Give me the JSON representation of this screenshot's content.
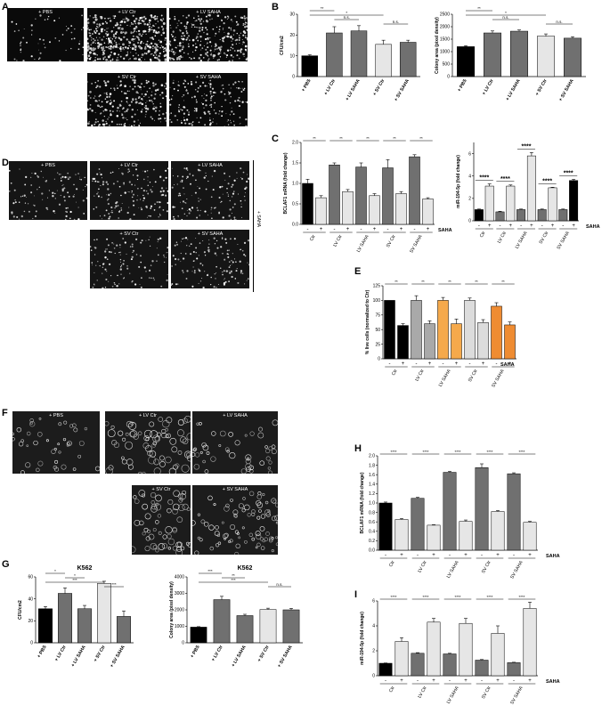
{
  "panels": {
    "A": {
      "letter": "A",
      "images": [
        "+ PBS",
        "+ LV Ctr",
        "+ LV SAHA",
        "+ SV Ctr",
        "+ SV SAHA"
      ]
    },
    "B": {
      "letter": "B"
    },
    "C": {
      "letter": "C"
    },
    "D": {
      "letter": "D",
      "images": [
        "+ PBS",
        "+ LV Ctr",
        "+ LV SAHA",
        "+ SV Ctr",
        "+ SV SAHA"
      ],
      "side_label": "+ SAHA"
    },
    "E": {
      "letter": "E"
    },
    "F": {
      "letter": "F",
      "images": [
        "+ PBS",
        "+ LV Ctr",
        "+ LV SAHA",
        "+ SV Ctr",
        "+ SV SAHA"
      ]
    },
    "G": {
      "letter": "G"
    },
    "H": {
      "letter": "H"
    },
    "I": {
      "letter": "I"
    }
  },
  "chart_data": [
    {
      "id": "B1",
      "type": "bar",
      "ylabel": "CFU/cm2",
      "categories": [
        "+ PBS",
        "+ LV Ctr",
        "+ LV SAHA",
        "+ SV Ctr",
        "+ SV SAHA"
      ],
      "values": [
        10,
        21,
        22,
        15.5,
        16.5
      ],
      "errors": [
        0.5,
        3,
        2.5,
        2,
        1
      ],
      "ylim": [
        0,
        30
      ],
      "yticks": [
        "0",
        "10",
        "20",
        "30"
      ],
      "colors": [
        "#000000",
        "#707070",
        "#707070",
        "#e6e6e6",
        "#707070"
      ],
      "sig": [
        {
          "a": 0,
          "b": 1,
          "t": "**"
        },
        {
          "a": 0,
          "b": 3,
          "t": "*"
        },
        {
          "a": 1,
          "b": 2,
          "t": "n.s."
        },
        {
          "a": 3,
          "b": 4,
          "t": "n.s."
        }
      ]
    },
    {
      "id": "B2",
      "type": "bar",
      "ylabel": "Colony area (pixel density)",
      "categories": [
        "+ PBS",
        "+ LV Ctr",
        "+ LV SAHA",
        "+ SV Ctr",
        "+ SV SAHA"
      ],
      "values": [
        1200,
        1750,
        1820,
        1620,
        1540
      ],
      "errors": [
        40,
        80,
        50,
        90,
        60
      ],
      "ylim": [
        0,
        2500
      ],
      "yticks": [
        "0",
        "500",
        "1000",
        "1500",
        "2000",
        "2500"
      ],
      "colors": [
        "#000000",
        "#707070",
        "#707070",
        "#e6e6e6",
        "#707070"
      ],
      "sig": [
        {
          "a": 0,
          "b": 1,
          "t": "**"
        },
        {
          "a": 0,
          "b": 3,
          "t": "*"
        },
        {
          "a": 1,
          "b": 2,
          "t": "n.s."
        },
        {
          "a": 3,
          "b": 4,
          "t": "n.s."
        }
      ]
    },
    {
      "id": "C1",
      "type": "bar",
      "ylabel": "BCLAF1 mRNA (fold change)",
      "groups": [
        "Ctr",
        "LV Ctr",
        "LV SAHA",
        "SV Ctr",
        "SV SAHA"
      ],
      "pm": [
        "-",
        "+"
      ],
      "factor": "SAHA",
      "values": [
        1.0,
        0.65,
        1.45,
        0.8,
        1.4,
        0.7,
        1.38,
        0.75,
        1.65,
        0.62
      ],
      "errors": [
        0.1,
        0.05,
        0.05,
        0.05,
        0.1,
        0.05,
        0.2,
        0.05,
        0.05,
        0.03
      ],
      "ylim": [
        0,
        2.0
      ],
      "yticks": [
        "0.0",
        "0.5",
        "1.0",
        "1.5",
        "2.0"
      ],
      "colors": [
        "#000000",
        "#e6e6e6",
        "#707070",
        "#e6e6e6",
        "#707070",
        "#e6e6e6",
        "#707070",
        "#e6e6e6",
        "#707070",
        "#e6e6e6"
      ],
      "sig": "**"
    },
    {
      "id": "C2",
      "type": "bar",
      "ylabel": "miR-194-5p (fold change)",
      "groups": [
        "Ctr",
        "LV Ctr",
        "LV SAHA",
        "SV Ctr",
        "SV SAHA"
      ],
      "pm": [
        "-",
        "+"
      ],
      "factor": "SAHA",
      "values": [
        1.0,
        3.1,
        0.8,
        3.1,
        1.0,
        5.8,
        1.0,
        2.95,
        1.0,
        3.6
      ],
      "errors": [
        0.05,
        0.2,
        0.05,
        0.1,
        0.05,
        0.3,
        0.05,
        0.05,
        0.05,
        0.1
      ],
      "ylim": [
        0,
        7
      ],
      "yticks": [
        "0",
        "2",
        "4",
        "6"
      ],
      "colors": [
        "#000000",
        "#e6e6e6",
        "#707070",
        "#e6e6e6",
        "#707070",
        "#e6e6e6",
        "#707070",
        "#e6e6e6",
        "#707070",
        "#000000"
      ],
      "sig": "****"
    },
    {
      "id": "E",
      "type": "bar",
      "ylabel": "% live cells (normalized to Ctr)",
      "groups": [
        "Ctr",
        "LV Ctr",
        "LV SAHA",
        "SV Ctr",
        "SV SAHA"
      ],
      "pm": [
        "-",
        "+"
      ],
      "factor": "SAHA",
      "values": [
        100,
        57,
        100,
        60,
        100,
        60,
        100,
        62,
        90,
        58
      ],
      "errors": [
        0,
        3,
        8,
        5,
        5,
        8,
        4,
        5,
        6,
        5
      ],
      "ylim": [
        0,
        125
      ],
      "yticks": [
        "0",
        "25",
        "50",
        "75",
        "100",
        "125"
      ],
      "colors": [
        "#000000",
        "#000000",
        "#a9a9a9",
        "#a9a9a9",
        "#f5a94b",
        "#f5a94b",
        "#dcdcdc",
        "#dcdcdc",
        "#ef8c32",
        "#ef8c32"
      ],
      "sig": "**"
    },
    {
      "id": "G1",
      "type": "bar",
      "title": "K562",
      "ylabel": "CFU/cm2",
      "categories": [
        "+ PBS",
        "+ LV Ctr",
        "+ LV SAHA",
        "+ SV Ctr",
        "+ SV SAHA"
      ],
      "values": [
        31,
        45,
        31,
        54,
        24
      ],
      "errors": [
        2,
        5,
        3,
        2,
        5
      ],
      "ylim": [
        0,
        60
      ],
      "yticks": [
        "0",
        "20",
        "40",
        "60"
      ],
      "colors": [
        "#000000",
        "#707070",
        "#707070",
        "#e6e6e6",
        "#707070"
      ],
      "sig": [
        {
          "a": 0,
          "b": 1,
          "t": "*"
        },
        {
          "a": 1,
          "b": 2,
          "t": "*"
        },
        {
          "a": 0,
          "b": 3,
          "t": "***"
        },
        {
          "a": 3,
          "b": 4,
          "t": "***"
        }
      ]
    },
    {
      "id": "G2",
      "type": "bar",
      "title": "K562",
      "ylabel": "Colony area (pixel density)",
      "categories": [
        "+ PBS",
        "+ LV Ctr",
        "+ LV SAHA",
        "+ SV Ctr",
        "+ SV SAHA"
      ],
      "values": [
        950,
        2620,
        1650,
        2020,
        2000
      ],
      "errors": [
        30,
        200,
        80,
        80,
        90
      ],
      "ylim": [
        0,
        4000
      ],
      "yticks": [
        "0",
        "1000",
        "2000",
        "3000",
        "4000"
      ],
      "colors": [
        "#000000",
        "#707070",
        "#707070",
        "#e6e6e6",
        "#707070"
      ],
      "sig": [
        {
          "a": 0,
          "b": 1,
          "t": "***"
        },
        {
          "a": 1,
          "b": 2,
          "t": "**"
        },
        {
          "a": 0,
          "b": 3,
          "t": "***"
        },
        {
          "a": 3,
          "b": 4,
          "t": "n.s."
        }
      ]
    },
    {
      "id": "H",
      "type": "bar",
      "ylabel": "BCLAF1 mRNA (fold change)",
      "groups": [
        "Ctr",
        "LV Ctr",
        "LV SAHA",
        "SV Ctr",
        "SV SAHA"
      ],
      "pm": [
        "-",
        "+"
      ],
      "factor": "SAHA",
      "values": [
        1.0,
        0.65,
        1.1,
        0.53,
        1.65,
        0.61,
        1.75,
        0.82,
        1.62,
        0.59
      ],
      "errors": [
        0.02,
        0.02,
        0.02,
        0.01,
        0.02,
        0.03,
        0.08,
        0.02,
        0.02,
        0.02
      ],
      "ylim": [
        0,
        2.0
      ],
      "yticks": [
        "0.0",
        "0.2",
        "0.4",
        "0.6",
        "0.8",
        "1.0",
        "1.2",
        "1.4",
        "1.6",
        "1.8",
        "2.0"
      ],
      "colors": [
        "#000000",
        "#e6e6e6",
        "#707070",
        "#e6e6e6",
        "#707070",
        "#e6e6e6",
        "#707070",
        "#e6e6e6",
        "#707070",
        "#e6e6e6"
      ],
      "sig": "****"
    },
    {
      "id": "I",
      "type": "bar",
      "ylabel": "miR-194-5p (fold change)",
      "groups": [
        "Ctr",
        "LV Ctr",
        "LV SAHA",
        "SV Ctr",
        "SV SAHA"
      ],
      "pm": [
        "-",
        "+"
      ],
      "factor": "SAHA",
      "values": [
        1.0,
        2.75,
        1.8,
        4.3,
        1.75,
        4.2,
        1.25,
        3.4,
        1.05,
        5.4
      ],
      "errors": [
        0.02,
        0.3,
        0.05,
        0.3,
        0.05,
        0.4,
        0.05,
        0.6,
        0.03,
        0.5
      ],
      "ylim": [
        0,
        6
      ],
      "yticks": [
        "0",
        "2",
        "4",
        "6"
      ],
      "colors": [
        "#000000",
        "#e6e6e6",
        "#707070",
        "#e6e6e6",
        "#707070",
        "#e6e6e6",
        "#707070",
        "#e6e6e6",
        "#707070",
        "#e6e6e6"
      ],
      "sig": "****"
    }
  ]
}
